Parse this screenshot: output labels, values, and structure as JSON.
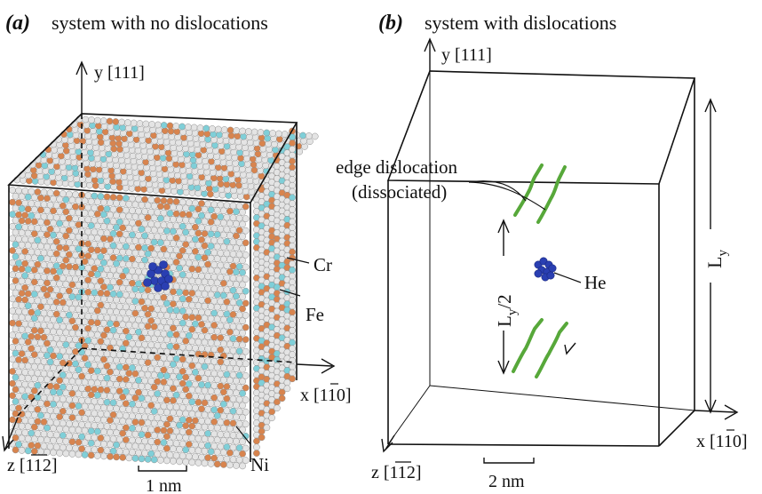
{
  "panel_a": {
    "tag": "(a)",
    "caption": "system with no dislocations",
    "axis_y": "y [111]",
    "axis_x": "x [1",
    "axis_x_bar": "1",
    "axis_x_end": "0]",
    "axis_z": "z [",
    "axis_z_bar": "11",
    "axis_z_end": "2]",
    "scale": "1 nm",
    "labels": {
      "cr": "Cr",
      "fe": "Fe",
      "ni": "Ni"
    }
  },
  "panel_b": {
    "tag": "(b)",
    "caption": "system with dislocations",
    "axis_y": "y [111]",
    "axis_x": "x [1",
    "axis_x_bar": "1",
    "axis_x_end": "0]",
    "axis_z": "z [",
    "axis_z_bar": "11",
    "axis_z_end": "2]",
    "scale": "2 nm",
    "dislocation_line1": "edge dislocation",
    "dislocation_line2": "(dissociated)",
    "he": "He",
    "half_height": "L",
    "half_height_sub": "y",
    "half_height_tail": "/2",
    "height": "L",
    "height_sub": "y"
  },
  "colors": {
    "ni": "#e4e4e4",
    "cr": "#d8844e",
    "fe": "#7fcfd8",
    "he": "#2a3fb2",
    "dislocation": "#57a83a",
    "line": "#111111"
  }
}
